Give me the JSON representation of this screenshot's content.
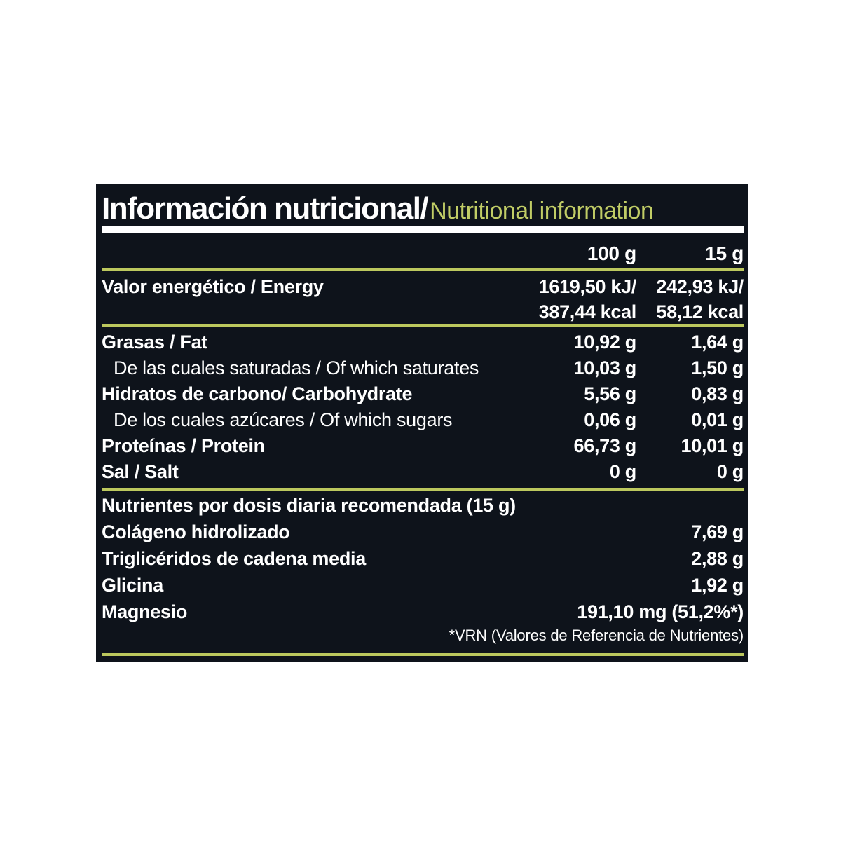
{
  "header": {
    "title_es": "Información nutricional/",
    "title_en": "Nutritional information"
  },
  "columns": {
    "col1": "100 g",
    "col2": "15 g"
  },
  "main_table": {
    "energy": {
      "label": "Valor energético / Energy",
      "per100_kj": "1619,50 kJ/",
      "per100_kcal": "387,44 kcal",
      "per15_kj": "242,93 kJ/",
      "per15_kcal": "58,12 kcal"
    },
    "rows": [
      {
        "label": "Grasas / Fat",
        "per100": "10,92 g",
        "per15": "1,64 g"
      },
      {
        "label": "De las cuales saturadas / Of which saturates",
        "per100": "10,03 g",
        "per15": "1,50 g"
      },
      {
        "label": "Hidratos de carbono/ Carbohydrate",
        "per100": "5,56 g",
        "per15": "0,83 g"
      },
      {
        "label": "De los cuales azúcares / Of which sugars",
        "per100": "0,06 g",
        "per15": "0,01 g"
      },
      {
        "label": "Proteínas / Protein",
        "per100": "66,73 g",
        "per15": "10,01 g"
      },
      {
        "label": "Sal / Salt",
        "per100": "0 g",
        "per15": "0 g"
      }
    ]
  },
  "daily_section": {
    "header": "Nutrientes por dosis diaria recomendada (15 g)",
    "rows": [
      {
        "label": "Colágeno hidrolizado",
        "value": "7,69 g"
      },
      {
        "label": "Triglicéridos de cadena media",
        "value": "2,88 g"
      },
      {
        "label": "Glicina",
        "value": "1,92 g"
      },
      {
        "label": "Magnesio",
        "value": "191,10 mg (51,2%*)"
      }
    ],
    "footnote": "*VRN (Valores de Referencia de Nutrientes)"
  },
  "colors": {
    "panel_background": "#0e131b",
    "accent_olive": "#c1cd66",
    "rule_olive": "#bcc85e",
    "text_white": "#ffffff",
    "page_background": "#ffffff"
  }
}
